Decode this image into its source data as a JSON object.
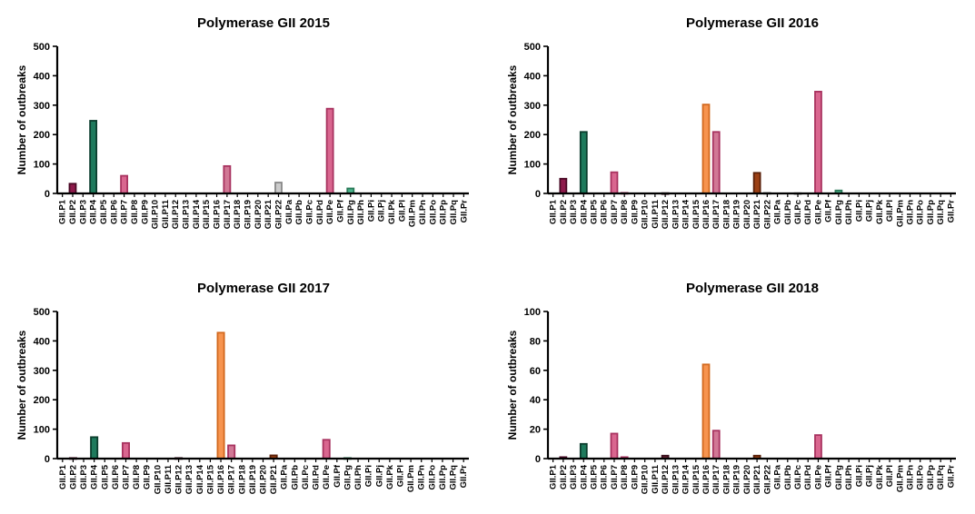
{
  "chart_data": [
    {
      "type": "bar",
      "title": "Polymerase GII 2015",
      "ylabel": "Number of outbreaks",
      "ylim": [
        0,
        500
      ],
      "yticks": [
        0,
        100,
        200,
        300,
        400,
        500
      ],
      "categories": [
        "GII.P1",
        "GII.P2",
        "GII.P3",
        "GII.P4",
        "GII.P5",
        "GII.P6",
        "GII.P7",
        "GII.P8",
        "GII.P9",
        "GII.P10",
        "GII.P11",
        "GII.P12",
        "GII.P13",
        "GII.P14",
        "GII.P15",
        "GII.P16",
        "GII.P17",
        "GII.P18",
        "GII.P19",
        "GII.P20",
        "GII.P21",
        "GII.P22",
        "GII.Pa",
        "GII.Pb",
        "GII.Pc",
        "GII.Pd",
        "GII.Pe",
        "GII.Pf",
        "GII.Pg",
        "GII.Ph",
        "GII.Pi",
        "GII.Pj",
        "GII.Pk",
        "GII.Pl",
        "GII.Pm",
        "GII.Pn",
        "GII.Po",
        "GII.Pp",
        "GII.Pq",
        "GII.Pr"
      ],
      "values": [
        0,
        33,
        0,
        247,
        0,
        0,
        60,
        0,
        0,
        0,
        0,
        0,
        0,
        0,
        0,
        0,
        93,
        0,
        0,
        0,
        0,
        37,
        0,
        0,
        0,
        0,
        288,
        0,
        17,
        0,
        0,
        0,
        0,
        0,
        0,
        0,
        0,
        0,
        0,
        0
      ]
    },
    {
      "type": "bar",
      "title": "Polymerase GII 2016",
      "ylabel": "Number of outbreaks",
      "ylim": [
        0,
        500
      ],
      "yticks": [
        0,
        100,
        200,
        300,
        400,
        500
      ],
      "categories": [
        "GII.P1",
        "GII.P2",
        "GII.P3",
        "GII.P4",
        "GII.P5",
        "GII.P6",
        "GII.P7",
        "GII.P8",
        "GII.P9",
        "GII.P10",
        "GII.P11",
        "GII.P12",
        "GII.P13",
        "GII.P14",
        "GII.P15",
        "GII.P16",
        "GII.P17",
        "GII.P18",
        "GII.P19",
        "GII.P20",
        "GII.P21",
        "GII.P22",
        "GII.Pa",
        "GII.Pb",
        "GII.Pc",
        "GII.Pd",
        "GII.Pe",
        "GII.Pf",
        "GII.Pg",
        "GII.Ph",
        "GII.Pi",
        "GII.Pj",
        "GII.Pk",
        "GII.Pl",
        "GII.Pm",
        "GII.Pn",
        "GII.Po",
        "GII.Pp",
        "GII.Pq",
        "GII.Pr"
      ],
      "values": [
        0,
        50,
        0,
        209,
        0,
        0,
        72,
        2,
        0,
        0,
        0,
        1,
        0,
        0,
        0,
        302,
        209,
        0,
        0,
        0,
        70,
        2,
        0,
        0,
        1,
        0,
        346,
        0,
        10,
        0,
        0,
        0,
        0,
        0,
        0,
        0,
        0,
        0,
        0,
        0
      ]
    },
    {
      "type": "bar",
      "title": "Polymerase GII 2017",
      "ylabel": "Number of outbreaks",
      "ylim": [
        0,
        500
      ],
      "yticks": [
        0,
        100,
        200,
        300,
        400,
        500
      ],
      "categories": [
        "GII.P1",
        "GII.P2",
        "GII.P3",
        "GII.P4",
        "GII.P5",
        "GII.P6",
        "GII.P7",
        "GII.P8",
        "GII.P9",
        "GII.P10",
        "GII.P11",
        "GII.P12",
        "GII.P13",
        "GII.P14",
        "GII.P15",
        "GII.P16",
        "GII.P17",
        "GII.P18",
        "GII.P19",
        "GII.P20",
        "GII.P21",
        "GII.Pa",
        "GII.Pb",
        "GII.Pc",
        "GII.Pd",
        "GII.Pe",
        "GII.Pf",
        "GII.Pg",
        "GII.Ph",
        "GII.Pi",
        "GII.Pj",
        "GII.Pk",
        "GII.Pl",
        "GII.Pm",
        "GII.Pn",
        "GII.Po",
        "GII.Pp",
        "GII.Pq",
        "GII.Pr"
      ],
      "values": [
        0,
        2,
        0,
        73,
        0,
        0,
        53,
        0,
        0,
        0,
        0,
        2,
        0,
        0,
        0,
        428,
        45,
        0,
        0,
        0,
        11,
        0,
        0,
        0,
        0,
        64,
        0,
        2,
        0,
        0,
        0,
        0,
        0,
        0,
        0,
        0,
        0,
        0,
        0
      ]
    },
    {
      "type": "bar",
      "title": "Polymerase GII 2018",
      "ylabel": "Number of outbreaks",
      "ylim": [
        0,
        100
      ],
      "yticks": [
        0,
        20,
        40,
        60,
        80,
        100
      ],
      "categories": [
        "GII.P1",
        "GII.P2",
        "GII.P3",
        "GII.P4",
        "GII.P5",
        "GII.P6",
        "GII.P7",
        "GII.P8",
        "GII.P9",
        "GII.P10",
        "GII.P11",
        "GII.P12",
        "GII.P13",
        "GII.P14",
        "GII.P15",
        "GII.P16",
        "GII.P17",
        "GII.P18",
        "GII.P19",
        "GII.P20",
        "GII.P21",
        "GII.P22",
        "GII.Pa",
        "GII.Pb",
        "GII.Pc",
        "GII.Pd",
        "GII.Pe",
        "GII.Pf",
        "GII.Pg",
        "GII.Ph",
        "GII.Pi",
        "GII.Pj",
        "GII.Pk",
        "GII.Pl",
        "GII.Pm",
        "GII.Pn",
        "GII.Po",
        "GII.Pp",
        "GII.Pq",
        "GII.Pr"
      ],
      "values": [
        0,
        1,
        0,
        10,
        0,
        0,
        17,
        1,
        0,
        0,
        0,
        2,
        0,
        0,
        0,
        64,
        19,
        0,
        0,
        0,
        2,
        0,
        0,
        0,
        0,
        0,
        16,
        0,
        0,
        0,
        0,
        0,
        0,
        0,
        0,
        0,
        0,
        0,
        0,
        0
      ]
    }
  ],
  "colors": {
    "GII.P2": "#8e1a4b",
    "GII.P4": "#1e7a5c",
    "GII.P7": "#d9668f",
    "GII.P8": "#d9668f",
    "GII.P12": "#6e2437",
    "GII.P16": "#f7944f",
    "GII.P17": "#d17895",
    "GII.P21": "#9c4115",
    "GII.Pe": "#d9668f",
    "GII.Pg": "#4ab58c",
    "default": "#cccccc"
  },
  "edge_colors": {
    "GII.P2": "#4a0a26",
    "GII.P4": "#0c3d2d",
    "GII.P7": "#a8325f",
    "GII.P8": "#a8325f",
    "GII.P12": "#3a0f1c",
    "GII.P16": "#d2691e",
    "GII.P17": "#a8325f",
    "GII.P21": "#5a2008",
    "GII.Pe": "#a8325f",
    "GII.Pg": "#2a7a58",
    "default": "#888888"
  }
}
